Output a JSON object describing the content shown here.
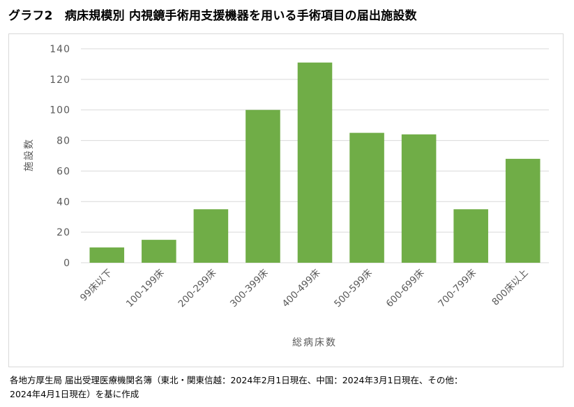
{
  "title": "グラフ2　病床規模別 内視鏡手術用支援機器を用いる手術項目の届出施設数",
  "source": {
    "line1": "各地方厚生局 届出受理医療機関名簿（東北・関東信越：2024年2月1日現在、中国：2024年3月1日現在、その他：",
    "line2": "2024年4月1日現在）を基に作成"
  },
  "colors": {
    "bar": "#70ad47",
    "grid": "#d9d9d9",
    "text": "#595959"
  },
  "chart_data": {
    "type": "bar",
    "categories": [
      "99床以下",
      "100-199床",
      "200-299床",
      "300-399床",
      "400-499床",
      "500-599床",
      "600-699床",
      "700-799床",
      "800床以上"
    ],
    "values": [
      10,
      15,
      35,
      100,
      131,
      85,
      84,
      35,
      68
    ],
    "ylabel": "施設数",
    "xlabel": "総病床数",
    "ylim": [
      0,
      140
    ],
    "yticks": [
      0,
      20,
      40,
      60,
      80,
      100,
      120,
      140
    ],
    "grid": true,
    "legend": false
  }
}
